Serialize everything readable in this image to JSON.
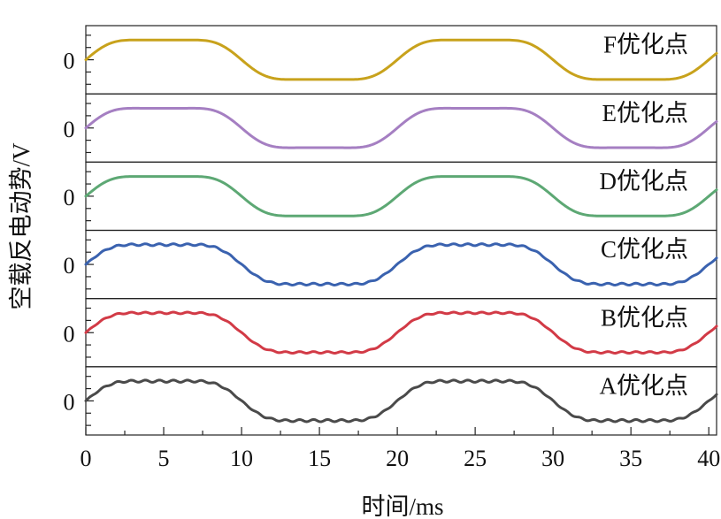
{
  "chart_data": {
    "type": "line",
    "subtype": "stacked-panels",
    "xlabel": "时间/ms",
    "ylabel": "空载反电动势/V",
    "xlim": [
      0,
      40.5
    ],
    "x_ticks": [
      0,
      5,
      10,
      15,
      20,
      25,
      30,
      35,
      40
    ],
    "y_tick_label": "0",
    "period_ms": 20,
    "panels": [
      {
        "name": "F优化点",
        "label": "F优化点",
        "color": "#C8A21C",
        "harmonics": [
          1.0,
          0.2,
          0.035
        ],
        "ripple": 0.0
      },
      {
        "name": "E优化点",
        "label": "E优化点",
        "color": "#A57FC2",
        "harmonics": [
          1.0,
          0.2,
          0.035
        ],
        "ripple": 0.0
      },
      {
        "name": "D优化点",
        "label": "D优化点",
        "color": "#5DA874",
        "harmonics": [
          1.0,
          0.2,
          0.035
        ],
        "ripple": 0.0
      },
      {
        "name": "C优化点",
        "label": "C优化点",
        "color": "#3A62AF",
        "harmonics": [
          1.0,
          0.2,
          0.035
        ],
        "ripple": 0.035
      },
      {
        "name": "B优化点",
        "label": "B优化点",
        "color": "#D23A46",
        "harmonics": [
          1.0,
          0.2,
          0.035
        ],
        "ripple": 0.03
      },
      {
        "name": "A优化点",
        "label": "A优化点",
        "color": "#4A4A4A",
        "harmonics": [
          1.0,
          0.2,
          0.035
        ],
        "ripple": 0.04
      }
    ]
  }
}
